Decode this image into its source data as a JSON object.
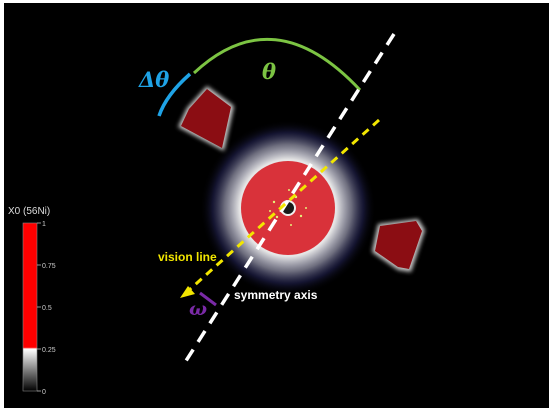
{
  "labels": {
    "theta": "θ",
    "delta_theta": "Δθ",
    "omega": "ω",
    "vision_line": "vision line",
    "symmetry_axis": "symmetry axis"
  },
  "colorbar": {
    "title": "X0 (56Ni)",
    "ticks": [
      "1",
      "0.75",
      "0.5",
      "0.25",
      "0"
    ]
  },
  "colors": {
    "background": "#000000",
    "disk": "#d9323a",
    "fragment": "#8b0d13",
    "theta_arc": "#7cc443",
    "delta_theta_arc": "#1fa3e6",
    "vision_line": "#f2e600",
    "symmetry_axis": "#ffffff",
    "omega": "#7a2aa6"
  }
}
